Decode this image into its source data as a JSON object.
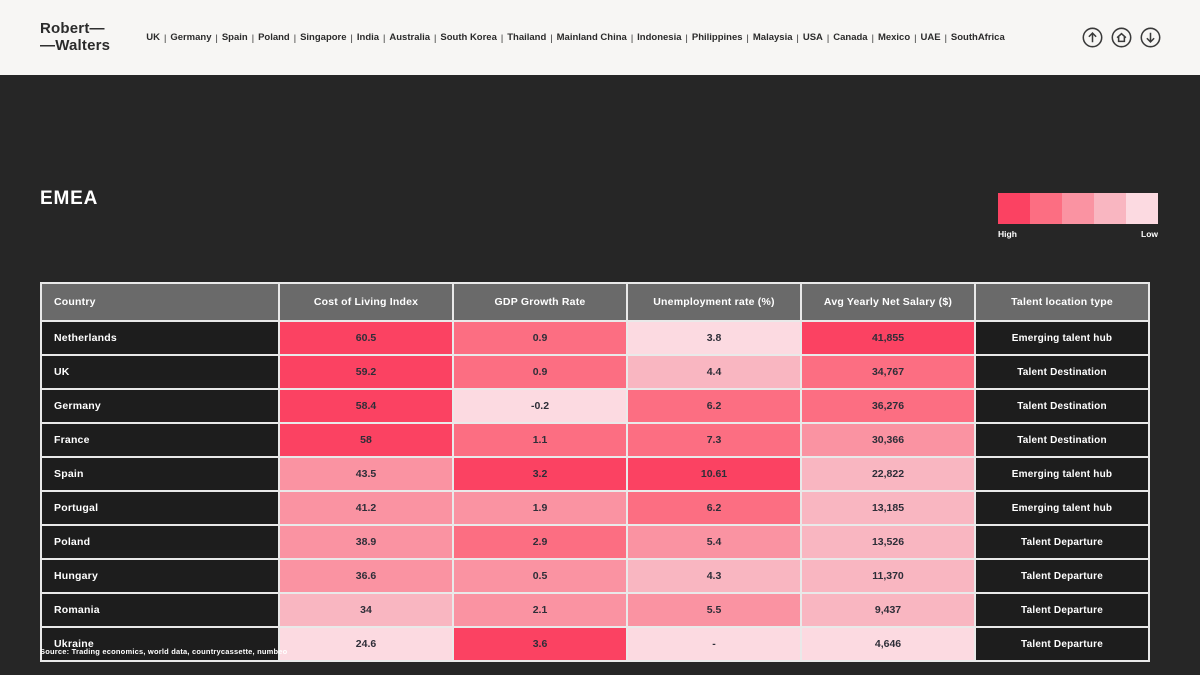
{
  "header": {
    "logo_line1": "Robert—",
    "logo_line2": "—Walters",
    "nav_separator": "|",
    "nav_items": [
      "UK",
      "Germany",
      "Spain",
      "Poland",
      "Singapore",
      "India",
      "Australia",
      "South Korea",
      "Thailand",
      "Mainland China",
      "Indonesia",
      "Philippines",
      "Malaysia",
      "USA",
      "Canada",
      "Mexico",
      "UAE",
      "SouthAfrica"
    ],
    "icons": [
      "up-arrow",
      "home",
      "down-arrow"
    ]
  },
  "main": {
    "title": "EMEA",
    "legend": {
      "high_label": "High",
      "low_label": "Low",
      "palette": [
        "#fb4262",
        "#fc6e82",
        "#fa93a2",
        "#f9b6c1",
        "#fcdae1"
      ]
    },
    "source": "Source: Trading economics, world data, countrycassette, numbeo"
  },
  "colors": {
    "c1": "#fb4262",
    "c2": "#fc6e82",
    "c3": "#fa93a2",
    "c4": "#f9b6c1",
    "c5": "#fcdae1",
    "background_dark": "#262626",
    "header_gray": "#6a6a6a",
    "cell_dark": "#1d1d1d",
    "topbar_bg": "#f7f6f4"
  },
  "table": {
    "columns": [
      "Country",
      "Cost of Living Index",
      "GDP Growth Rate",
      "Unemployment rate (%)",
      "Avg Yearly Net Salary ($)",
      "Talent location type"
    ],
    "rows": [
      {
        "country": "Netherlands",
        "cost_of_living": {
          "v": "60.5",
          "c": "c1"
        },
        "gdp_growth": {
          "v": "0.9",
          "c": "c2"
        },
        "unemployment": {
          "v": "3.8",
          "c": "c5"
        },
        "salary": {
          "v": "41,855",
          "c": "c1"
        },
        "talent_type": "Emerging talent hub"
      },
      {
        "country": "UK",
        "cost_of_living": {
          "v": "59.2",
          "c": "c1"
        },
        "gdp_growth": {
          "v": "0.9",
          "c": "c2"
        },
        "unemployment": {
          "v": "4.4",
          "c": "c4"
        },
        "salary": {
          "v": "34,767",
          "c": "c2"
        },
        "talent_type": "Talent Destination"
      },
      {
        "country": "Germany",
        "cost_of_living": {
          "v": "58.4",
          "c": "c1"
        },
        "gdp_growth": {
          "v": "-0.2",
          "c": "c5"
        },
        "unemployment": {
          "v": "6.2",
          "c": "c2"
        },
        "salary": {
          "v": "36,276",
          "c": "c2"
        },
        "talent_type": "Talent Destination"
      },
      {
        "country": "France",
        "cost_of_living": {
          "v": "58",
          "c": "c1"
        },
        "gdp_growth": {
          "v": "1.1",
          "c": "c2"
        },
        "unemployment": {
          "v": "7.3",
          "c": "c2"
        },
        "salary": {
          "v": "30,366",
          "c": "c3"
        },
        "talent_type": "Talent Destination"
      },
      {
        "country": "Spain",
        "cost_of_living": {
          "v": "43.5",
          "c": "c3"
        },
        "gdp_growth": {
          "v": "3.2",
          "c": "c1"
        },
        "unemployment": {
          "v": "10.61",
          "c": "c1"
        },
        "salary": {
          "v": "22,822",
          "c": "c4"
        },
        "talent_type": "Emerging talent hub"
      },
      {
        "country": "Portugal",
        "cost_of_living": {
          "v": "41.2",
          "c": "c3"
        },
        "gdp_growth": {
          "v": "1.9",
          "c": "c3"
        },
        "unemployment": {
          "v": "6.2",
          "c": "c2"
        },
        "salary": {
          "v": "13,185",
          "c": "c4"
        },
        "talent_type": "Emerging talent hub"
      },
      {
        "country": "Poland",
        "cost_of_living": {
          "v": "38.9",
          "c": "c3"
        },
        "gdp_growth": {
          "v": "2.9",
          "c": "c2"
        },
        "unemployment": {
          "v": "5.4",
          "c": "c3"
        },
        "salary": {
          "v": "13,526",
          "c": "c4"
        },
        "talent_type": "Talent Departure"
      },
      {
        "country": "Hungary",
        "cost_of_living": {
          "v": "36.6",
          "c": "c3"
        },
        "gdp_growth": {
          "v": "0.5",
          "c": "c3"
        },
        "unemployment": {
          "v": "4.3",
          "c": "c4"
        },
        "salary": {
          "v": "11,370",
          "c": "c4"
        },
        "talent_type": "Talent Departure"
      },
      {
        "country": "Romania",
        "cost_of_living": {
          "v": "34",
          "c": "c4"
        },
        "gdp_growth": {
          "v": "2.1",
          "c": "c3"
        },
        "unemployment": {
          "v": "5.5",
          "c": "c3"
        },
        "salary": {
          "v": "9,437",
          "c": "c4"
        },
        "talent_type": "Talent Departure"
      },
      {
        "country": "Ukraine",
        "cost_of_living": {
          "v": "24.6",
          "c": "c5"
        },
        "gdp_growth": {
          "v": "3.6",
          "c": "c1"
        },
        "unemployment": {
          "v": "-",
          "c": "c5"
        },
        "salary": {
          "v": "4,646",
          "c": "c5"
        },
        "talent_type": "Talent Departure"
      }
    ]
  }
}
